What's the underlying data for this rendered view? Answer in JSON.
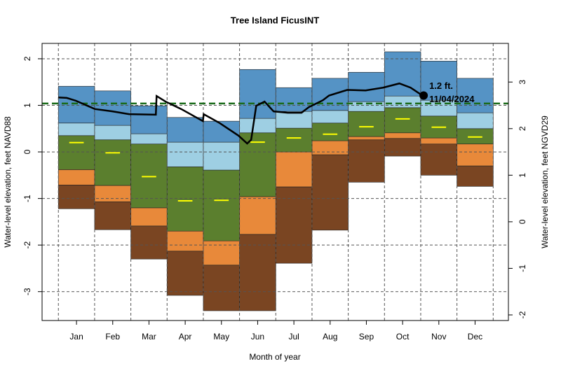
{
  "chart_data": {
    "type": "percentile-bands",
    "title": "Tree Island FicusINT",
    "x_label": "Month of year",
    "y_label": "Water-level elevation, feet NAVD88",
    "y2_label": "Water-level elevation, feet NGVD29",
    "categories": [
      "Jan",
      "Feb",
      "Mar",
      "Apr",
      "May",
      "Jun",
      "Jul",
      "Aug",
      "Sep",
      "Oct",
      "Nov",
      "Dec"
    ],
    "xlim": [
      -0.45,
      12.42
    ],
    "ylim": [
      -3.62,
      2.33
    ],
    "yticks": [
      -3,
      -2,
      -1,
      0,
      1,
      2
    ],
    "y2lim": [
      -2.12,
      3.83
    ],
    "y2ticks": [
      -2,
      -1,
      0,
      1,
      2,
      3
    ],
    "grid": true,
    "levels": [
      [
        -1.22,
        -1.67,
        -2.3,
        -3.08,
        -3.41,
        -3.41,
        -2.39,
        -1.68,
        -0.65,
        -0.09,
        -0.5,
        -0.74
      ],
      [
        -0.71,
        -1.07,
        -1.59,
        -2.13,
        -2.43,
        -1.77,
        -0.75,
        -0.06,
        0.26,
        0.29,
        0.17,
        -0.3
      ],
      [
        -0.38,
        -0.72,
        -1.2,
        -1.7,
        -1.91,
        -0.96,
        0.0,
        0.24,
        0.33,
        0.41,
        0.3,
        0.17
      ],
      [
        0.35,
        0.26,
        0.17,
        -0.32,
        -0.39,
        0.41,
        0.51,
        0.62,
        0.87,
        0.95,
        0.77,
        0.5
      ],
      [
        0.62,
        0.57,
        0.39,
        0.21,
        0.21,
        0.72,
        0.87,
        0.89,
        1.08,
        1.2,
        1.11,
        0.84
      ],
      [
        1.41,
        1.31,
        0.99,
        0.74,
        0.66,
        1.77,
        1.38,
        1.58,
        1.71,
        2.15,
        1.95,
        1.58
      ]
    ],
    "band_colors": [
      "#7a4522",
      "#e8893a",
      "#5b7f2e",
      "#9ecfe3",
      "#5593c5"
    ],
    "medians": [
      0.2,
      -0.02,
      -0.53,
      -1.05,
      -1.04,
      0.21,
      0.3,
      0.38,
      0.54,
      0.71,
      0.53,
      0.32
    ],
    "median_color": "#ffff00",
    "trace": {
      "color": "#000000",
      "x": [
        0,
        0.23,
        0.48,
        1.01,
        1.49,
        1.95,
        2.69,
        2.71,
        2.96,
        3.39,
        3.99,
        4.01,
        4.45,
        4.97,
        5.21,
        5.32,
        5.46,
        5.69,
        5.94,
        6.33,
        6.71,
        6.91,
        7.3,
        7.47,
        7.97,
        8.48,
        8.96,
        9.41,
        9.72,
        9.99,
        10.08
      ],
      "y": [
        1.17,
        1.16,
        1.1,
        0.92,
        0.87,
        0.81,
        0.8,
        1.2,
        1.08,
        0.92,
        0.66,
        0.81,
        0.62,
        0.35,
        0.18,
        0.26,
        0.99,
        1.08,
        0.87,
        0.84,
        0.84,
        0.96,
        1.11,
        1.21,
        1.33,
        1.32,
        1.38,
        1.47,
        1.38,
        1.24,
        1.21
      ]
    },
    "reference_line": {
      "value": 1.04,
      "color": "#1a6b1a"
    },
    "annotation": {
      "x": 10.08,
      "y": 1.21,
      "label": "1.2 ft.",
      "date": "11/04/2024"
    }
  }
}
